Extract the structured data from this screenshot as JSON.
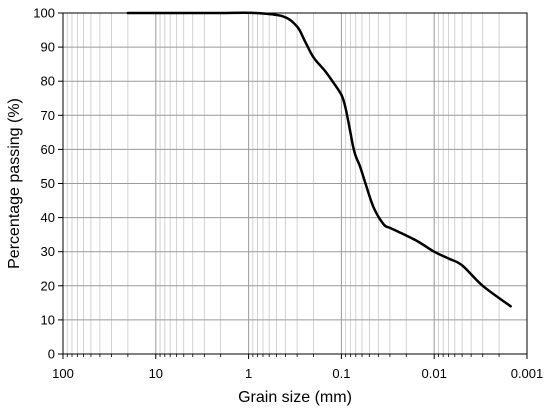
{
  "chart_data": {
    "type": "line",
    "title": "",
    "xlabel": "Grain size (mm)",
    "ylabel": "Percentage passing (%)",
    "xscale": "log",
    "xaxis_reversed": true,
    "xlim": [
      100,
      0.001
    ],
    "ylim": [
      0,
      100
    ],
    "grid": true,
    "legend": "none",
    "x_tick_labels": [
      "100",
      "10",
      "1",
      "0.1",
      "0.01",
      "0.001"
    ],
    "x_tick_values": [
      100,
      10,
      1,
      0.1,
      0.01,
      0.001
    ],
    "y_tick_labels": [
      "0",
      "10",
      "20",
      "30",
      "40",
      "50",
      "60",
      "70",
      "80",
      "90",
      "100"
    ],
    "y_tick_values": [
      0,
      10,
      20,
      30,
      40,
      50,
      60,
      70,
      80,
      90,
      100
    ],
    "series": [
      {
        "color": "#000000",
        "x": [
          20,
          4.75,
          2.0,
          0.85,
          0.425,
          0.3,
          0.25,
          0.2,
          0.15,
          0.125,
          0.1,
          0.09,
          0.08,
          0.075,
          0.07,
          0.063,
          0.055,
          0.045,
          0.035,
          0.03,
          0.025,
          0.015,
          0.01,
          0.007,
          0.005,
          0.003,
          0.0015
        ],
        "values": [
          100,
          100,
          100,
          100,
          99,
          96,
          92,
          87,
          83,
          80,
          76,
          72,
          65,
          61,
          58,
          55,
          50,
          43,
          38,
          37,
          36,
          33,
          30,
          28,
          26,
          20,
          14
        ]
      }
    ]
  }
}
